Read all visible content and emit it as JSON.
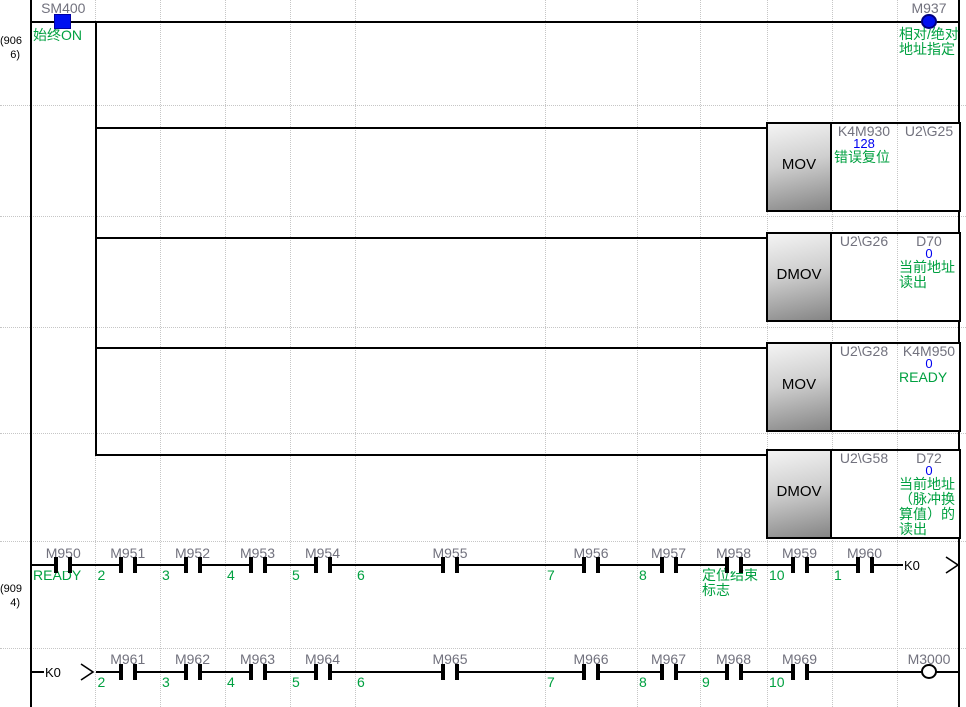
{
  "title": "PLC ladder monitor view",
  "colors": {
    "wire": "#000000",
    "grid": "#c6c6c6",
    "device_label": "#72727e",
    "comment": "#00a040",
    "value": "#0000f0",
    "energized": "#0010f0",
    "step": "#000000"
  },
  "rungs": [
    {
      "step": "(9066)",
      "step_lines": [
        "(906",
        "6)"
      ],
      "contacts": [
        {
          "device": "SM400",
          "comment": "始终ON",
          "state": "on"
        }
      ],
      "coil": {
        "device": "M937",
        "comment": "相对/绝对地址指定",
        "state": "on"
      },
      "branches": [
        {
          "instruction": "MOV",
          "operands": [
            {
              "device": "K4M930",
              "value": "128",
              "comment": "错误复位"
            },
            {
              "device": "U2\\G25",
              "value": "",
              "comment": ""
            }
          ]
        },
        {
          "instruction": "DMOV",
          "operands": [
            {
              "device": "U2\\G26",
              "value": "",
              "comment": ""
            },
            {
              "device": "D70",
              "value": "0",
              "comment": "当前地址读出"
            }
          ]
        },
        {
          "instruction": "MOV",
          "operands": [
            {
              "device": "U2\\G28",
              "value": "",
              "comment": ""
            },
            {
              "device": "K4M950",
              "value": "0",
              "comment": "READY"
            }
          ]
        },
        {
          "instruction": "DMOV",
          "operands": [
            {
              "device": "U2\\G58",
              "value": "",
              "comment": ""
            },
            {
              "device": "D72",
              "value": "0",
              "comment": "当前地址（脉冲换算值）的读出"
            }
          ]
        }
      ]
    },
    {
      "step": "(9094)",
      "step_lines": [
        "(909",
        "4)"
      ],
      "contacts": [
        {
          "device": "M950",
          "comment": "READY",
          "state": "off"
        },
        {
          "device": "M951",
          "comment": "2",
          "state": "off"
        },
        {
          "device": "M952",
          "comment": "3",
          "state": "off"
        },
        {
          "device": "M953",
          "comment": "4",
          "state": "off"
        },
        {
          "device": "M954",
          "comment": "5",
          "state": "off"
        },
        {
          "device": "M955",
          "comment": "6",
          "state": "off"
        },
        {
          "device": "M956",
          "comment": "7",
          "state": "off"
        },
        {
          "device": "M957",
          "comment": "8",
          "state": "off"
        },
        {
          "device": "M958",
          "comment": "定位结束标志",
          "state": "off"
        },
        {
          "device": "M959",
          "comment": "10",
          "state": "off"
        },
        {
          "device": "M960",
          "comment": "1",
          "state": "off"
        }
      ],
      "continuation_out": "K0"
    },
    {
      "continuation_in": "K0",
      "contacts": [
        {
          "device": "M961",
          "comment": "2",
          "state": "off"
        },
        {
          "device": "M962",
          "comment": "3",
          "state": "off"
        },
        {
          "device": "M963",
          "comment": "4",
          "state": "off"
        },
        {
          "device": "M964",
          "comment": "5",
          "state": "off"
        },
        {
          "device": "M965",
          "comment": "6",
          "state": "off"
        },
        {
          "device": "M966",
          "comment": "7",
          "state": "off"
        },
        {
          "device": "M967",
          "comment": "8",
          "state": "off"
        },
        {
          "device": "M968",
          "comment": "9",
          "state": "off"
        },
        {
          "device": "M969",
          "comment": "10",
          "state": "off"
        }
      ],
      "coil": {
        "device": "M3000",
        "comment": "",
        "state": "off"
      }
    }
  ]
}
